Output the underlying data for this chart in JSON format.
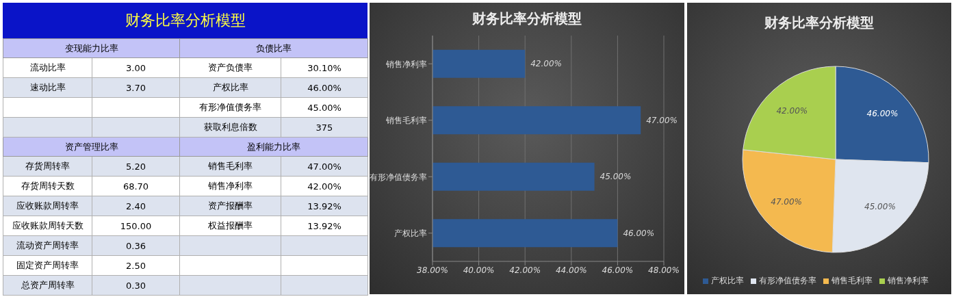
{
  "chart_data": [
    {
      "type": "other",
      "title": "财务比率分析模型",
      "annotations": [
        "变现能力比率",
        "负债比率",
        "流动比率",
        "3.00",
        "资产负债率",
        "30.10%",
        "速动比率",
        "3.70",
        "产权比率",
        "46.00%",
        "有形净值债务率",
        "45.00%",
        "获取利息倍数",
        "375",
        "资产管理比率",
        "盈利能力比率",
        "存货周转率",
        "5.20",
        "销售毛利率",
        "47.00%",
        "存货周转天数",
        "68.70",
        "销售净利率",
        "42.00%",
        "应收账款周转率",
        "2.40",
        "资产报酬率",
        "13.92%",
        "应收账款周转天数",
        "150.00",
        "权益报酬率",
        "13.92%",
        "流动资产周转率",
        "0.36",
        "固定资产周转率",
        "2.50",
        "总资产周转率",
        "0.30"
      ]
    },
    {
      "type": "bar",
      "title": "财务比率分析模型",
      "orientation": "horizontal",
      "categories": [
        "销售净利率",
        "销售毛利率",
        "有形净值债务率",
        "产权比率"
      ],
      "values": [
        42,
        47,
        45,
        46
      ],
      "value_labels": [
        "42.00%",
        "47.00%",
        "45.00%",
        "46.00%"
      ],
      "color": "#2e5a94",
      "xlim": [
        38,
        48
      ],
      "xticks": [
        {
          "value": 38,
          "label": "38.00%"
        },
        {
          "value": 40,
          "label": "40.00%"
        },
        {
          "value": 42,
          "label": "42.00%"
        },
        {
          "value": 44,
          "label": "44.00%"
        },
        {
          "value": 46,
          "label": "46.00%"
        },
        {
          "value": 48,
          "label": "48.00%"
        }
      ],
      "grid": "x"
    },
    {
      "type": "pie",
      "title": "财务比率分析模型",
      "categories": [
        "产权比率",
        "有形净值债务率",
        "销售毛利率",
        "销售净利率"
      ],
      "values": [
        46,
        45,
        47,
        42
      ],
      "colors": [
        "#2e5a94",
        "#dfe5ef",
        "#f4b94f",
        "#a9cf4f"
      ],
      "value_labels": [
        "46.00%",
        "45.00%",
        "47.00%",
        "42.00%"
      ],
      "legend": "bottom"
    }
  ]
}
